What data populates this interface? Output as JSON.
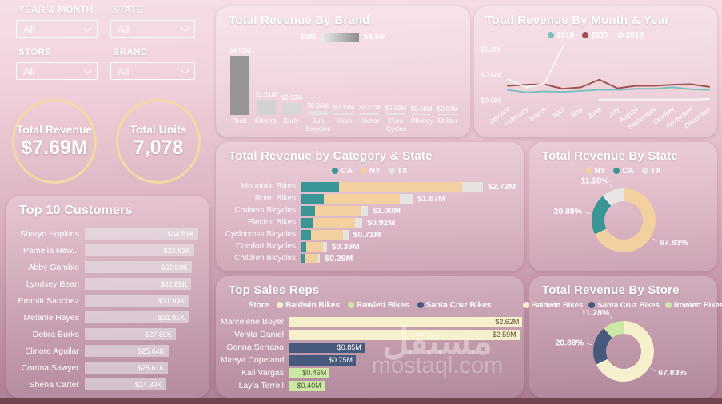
{
  "watermark": {
    "arabic": "مستقل",
    "latin": "mostaql.com"
  },
  "filters": [
    {
      "label": "YEAR & MONTH",
      "value": "All"
    },
    {
      "label": "STATE",
      "value": "All"
    },
    {
      "label": "STORE",
      "value": "All"
    },
    {
      "label": "BRAND",
      "value": "All"
    }
  ],
  "kpis": [
    {
      "label": "Total Revenue",
      "value": "$7.69M"
    },
    {
      "label": "Total Units",
      "value": "7,078"
    }
  ],
  "chart_data": [
    {
      "id": "top_customers",
      "type": "bar",
      "orientation": "horizontal",
      "title": "Top 10 Customers",
      "categories": [
        "Sharyn Hopkins",
        "Pamelia New...",
        "Abby Gamble",
        "Lyndsey Bean",
        "Emmitt Sanchez",
        "Melanie Hayes",
        "Debra Burks",
        "Elinore Aguilar",
        "Corrina Sawyer",
        "Shena Carter"
      ],
      "values": [
        34.81,
        33.63,
        32.8,
        32.68,
        31.93,
        31.91,
        27.89,
        25.64,
        25.61,
        24.89
      ],
      "labels": [
        "$34.81K",
        "$33.63K",
        "$32.80K",
        "$32.68K",
        "$31.93K",
        "$31.91K",
        "$27.89K",
        "$25.64K",
        "$25.61K",
        "$24.89K"
      ],
      "xlim": [
        0,
        34.81
      ],
      "bar_color": "#b9b4ba"
    },
    {
      "id": "revenue_by_brand",
      "type": "bar",
      "title": "Total Revenue By Brand",
      "categories": [
        "Trek",
        "Electra",
        "Surly",
        "Sun Bicycles",
        "Haro",
        "Heller",
        "Pure Cycles",
        "Ritchey",
        "Strider"
      ],
      "values": [
        4.6,
        1.21,
        0.95,
        0.34,
        0.19,
        0.17,
        0.15,
        0.08,
        0.0
      ],
      "labels": [
        "$4.60M",
        "$1.21M",
        "$0.95M",
        "$0.34M",
        "$0.19M",
        "$0.17M",
        "$0.15M",
        "$0.08M",
        "$0.00M"
      ],
      "ylim": [
        0,
        4.6
      ],
      "color_scale": {
        "min_label": "$0M",
        "max_label": "$4.6M",
        "min_color": "#e9e7e7",
        "max_color": "#989494"
      }
    },
    {
      "id": "revenue_by_month_year",
      "type": "line",
      "title": "Total Revenue By Month & Year",
      "x": [
        "January",
        "February",
        "March",
        "April",
        "May",
        "June",
        "July",
        "August",
        "September",
        "October",
        "November",
        "December"
      ],
      "series": [
        {
          "name": "2016",
          "color": "#7cc0c0",
          "values": [
            0.21,
            0.16,
            0.18,
            0.17,
            0.19,
            0.21,
            0.21,
            0.23,
            0.23,
            0.26,
            0.22,
            0.21
          ]
        },
        {
          "name": "2017",
          "color": "#a05050",
          "values": [
            0.29,
            0.31,
            0.32,
            0.23,
            0.26,
            0.41,
            0.24,
            0.29,
            0.29,
            0.31,
            0.32,
            0.27
          ]
        },
        {
          "name": "2018",
          "color": "#f2f2f2",
          "values": [
            0.42,
            0.26,
            0.33,
            1.05,
            null,
            0.02,
            0.02,
            0.02,
            0.02,
            0.02,
            0.02,
            0.03
          ]
        }
      ],
      "yticks": [
        "$0.0M",
        "$0.5M",
        "$1.0M"
      ],
      "ylim": [
        0,
        1.0
      ],
      "legend_position": "top",
      "grid": true
    },
    {
      "id": "revenue_by_category_state",
      "type": "bar",
      "stacked": true,
      "orientation": "horizontal",
      "title": "Total Revenue by Category & State",
      "categories": [
        "Mountain Bikes",
        "Road Bikes",
        "Cruisers Bicycles",
        "Electric Bikes",
        "Cyclocross Bicycles",
        "Comfort Bicycles",
        "Children Bicycles"
      ],
      "series": [
        {
          "name": "CA",
          "color": "#3a9596",
          "values": [
            0.57,
            0.35,
            0.21,
            0.19,
            0.15,
            0.08,
            0.06
          ]
        },
        {
          "name": "NY",
          "color": "#f2d0a0",
          "values": [
            1.84,
            1.13,
            0.68,
            0.62,
            0.48,
            0.26,
            0.2
          ]
        },
        {
          "name": "TX",
          "color": "#e6e4e2",
          "values": [
            0.31,
            0.19,
            0.11,
            0.11,
            0.08,
            0.05,
            0.03
          ]
        }
      ],
      "totals_labels": [
        "$2.72M",
        "$1.67M",
        "$1.00M",
        "$0.92M",
        "$0.71M",
        "$0.39M",
        "$0.29M"
      ],
      "totals": [
        2.72,
        1.67,
        1.0,
        0.92,
        0.71,
        0.39,
        0.29
      ],
      "xlim": [
        0,
        2.72
      ],
      "legend_position": "top"
    },
    {
      "id": "revenue_by_state",
      "type": "pie",
      "donut": true,
      "title": "Total Revenue By State",
      "slices": [
        {
          "name": "NY",
          "pct": 67.83,
          "label": "67.83%",
          "color": "#f2d0a0"
        },
        {
          "name": "CA",
          "pct": 20.88,
          "label": "20.88%",
          "color": "#3a9596"
        },
        {
          "name": "TX",
          "pct": 11.28,
          "label": "11.28%",
          "color": "#e8e6e4"
        }
      ],
      "legend_position": "top"
    },
    {
      "id": "top_sales_reps",
      "type": "bar",
      "orientation": "horizontal",
      "title": "Top Sales Reps",
      "legend_title": "Store",
      "stores": [
        {
          "name": "Baldwin Bikes",
          "color": "#f6f0cd",
          "text_color": "#5c4c35"
        },
        {
          "name": "Rowlett Bikes",
          "color": "#cde7a6",
          "text_color": "#4c5c33"
        },
        {
          "name": "Santa Cruz Bikes",
          "color": "#47597c",
          "text_color": "#ffffff"
        }
      ],
      "rows": [
        {
          "name": "Marcelene Boyer",
          "value": 2.62,
          "label": "$2.62M",
          "store": "Baldwin Bikes"
        },
        {
          "name": "Venita Daniel",
          "value": 2.59,
          "label": "$2.59M",
          "store": "Baldwin Bikes"
        },
        {
          "name": "Genna Serrano",
          "value": 0.85,
          "label": "$0.85M",
          "store": "Santa Cruz Bikes"
        },
        {
          "name": "Mireya Copeland",
          "value": 0.75,
          "label": "$0.75M",
          "store": "Santa Cruz Bikes"
        },
        {
          "name": "Kali Vargas",
          "value": 0.46,
          "label": "$0.46M",
          "store": "Rowlett Bikes"
        },
        {
          "name": "Layla Terrell",
          "value": 0.4,
          "label": "$0.40M",
          "store": "Rowlett Bikes"
        }
      ],
      "xlim": [
        0,
        2.62
      ]
    },
    {
      "id": "revenue_by_store",
      "type": "pie",
      "donut": true,
      "title": "Total Revenue By Store",
      "slices": [
        {
          "name": "Baldwin Bikes",
          "pct": 67.83,
          "label": "67.83%",
          "color": "#f6f0cd"
        },
        {
          "name": "Santa Cruz Bikes",
          "pct": 20.88,
          "label": "20.88%",
          "color": "#47597c"
        },
        {
          "name": "Rowlett Bikes",
          "pct": 11.28,
          "label": "11.28%",
          "color": "#cde7a6"
        }
      ],
      "legend_position": "top"
    }
  ]
}
